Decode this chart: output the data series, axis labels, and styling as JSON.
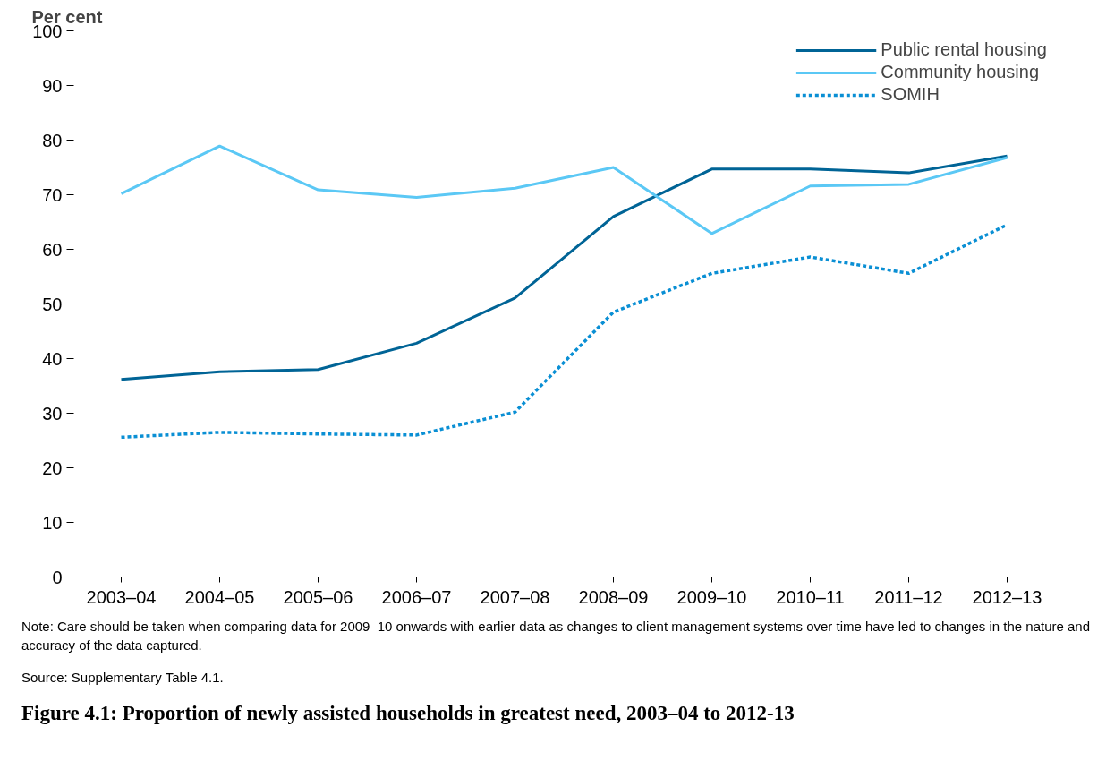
{
  "chart_data": {
    "type": "line",
    "title": "Figure 4.1: Proportion of newly assisted households in greatest need, 2003–04 to 2012-13",
    "ylabel": "Per cent",
    "categories": [
      "2003–04",
      "2004–05",
      "2005–06",
      "2006–07",
      "2007–08",
      "2008–09",
      "2009–10",
      "2010–11",
      "2011–12",
      "2012–13"
    ],
    "series": [
      {
        "name": "Public rental housing",
        "color": "#006496",
        "values": [
          36.2,
          37.6,
          38.0,
          42.8,
          51.1,
          66.0,
          74.7,
          74.7,
          74.0,
          77.1
        ]
      },
      {
        "name": "Community housing",
        "color": "#5bc8f5",
        "values": [
          70.2,
          78.9,
          70.9,
          69.5,
          71.2,
          75.0,
          62.9,
          71.6,
          71.9,
          76.8
        ]
      },
      {
        "name": "SOMIH",
        "color": "#0a8fd4",
        "line_style": "dotted",
        "values": [
          25.6,
          26.5,
          26.2,
          26.0,
          30.2,
          48.5,
          55.6,
          58.6,
          55.6,
          64.5
        ]
      }
    ],
    "ylim": [
      0,
      100
    ],
    "yticks": [
      0,
      10,
      20,
      30,
      40,
      50,
      60,
      70,
      80,
      90,
      100
    ],
    "grid": false,
    "legend": "top right",
    "line_style": "solid",
    "annotations": [
      "Note: Care should be taken when comparing data for 2009–10 onwards with earlier data as changes to client management systems over time have led to changes in the nature and accuracy of the data captured.",
      "Source: Supplementary Table 4.1."
    ]
  }
}
